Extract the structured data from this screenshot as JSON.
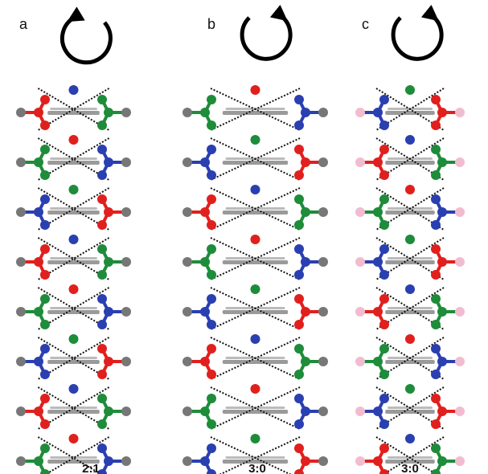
{
  "panels": [
    {
      "letter": "a",
      "ratio": "2:1"
    },
    {
      "letter": "b",
      "ratio": "3:0"
    },
    {
      "letter": "c",
      "ratio": "3:0"
    }
  ]
}
